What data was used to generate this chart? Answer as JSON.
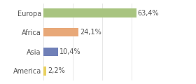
{
  "categories": [
    "Europa",
    "Africa",
    "Asia",
    "America"
  ],
  "values": [
    63.4,
    24.1,
    10.4,
    2.2
  ],
  "labels": [
    "63,4%",
    "24,1%",
    "10,4%",
    "2,2%"
  ],
  "bar_colors": [
    "#a8c480",
    "#e8a878",
    "#7080b8",
    "#e8d060"
  ],
  "background_color": "#ffffff",
  "grid_color": "#dddddd",
  "xlim": [
    0,
    80
  ],
  "label_fontsize": 7,
  "category_fontsize": 7,
  "bar_height": 0.45,
  "text_color": "#555555"
}
